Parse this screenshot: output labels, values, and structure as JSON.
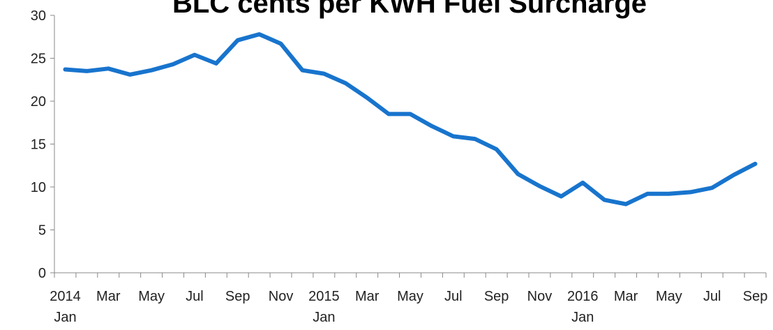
{
  "chart_data": {
    "type": "line",
    "title": "BLC cents per KWH Fuel Surcharge",
    "categories": [
      "2014\nJan",
      null,
      "Mar",
      null,
      "May",
      null,
      "Jul",
      null,
      "Sep",
      null,
      "Nov",
      null,
      "2015\nJan",
      null,
      "Mar",
      null,
      "May",
      null,
      "Jul",
      null,
      "Sep",
      null,
      "Nov",
      null,
      "2016\nJan",
      null,
      "Mar",
      null,
      "May",
      null,
      "Jul",
      null,
      "Sep"
    ],
    "series": [
      {
        "name": "BLC cents per KWH Fuel Surcharge",
        "color": "#1874cd",
        "values": [
          23.7,
          23.5,
          23.8,
          23.1,
          23.6,
          24.3,
          25.4,
          24.4,
          27.1,
          27.8,
          26.7,
          23.6,
          23.2,
          22.1,
          20.4,
          18.5,
          18.5,
          17.1,
          15.9,
          15.6,
          14.4,
          11.5,
          10.1,
          8.9,
          10.5,
          8.5,
          8.0,
          9.2,
          9.2,
          9.4,
          9.9,
          11.4,
          12.7
        ]
      }
    ],
    "ylim": [
      0,
      30
    ],
    "yticks": [
      0,
      5,
      10,
      15,
      20,
      25,
      30
    ],
    "grid": false
  }
}
